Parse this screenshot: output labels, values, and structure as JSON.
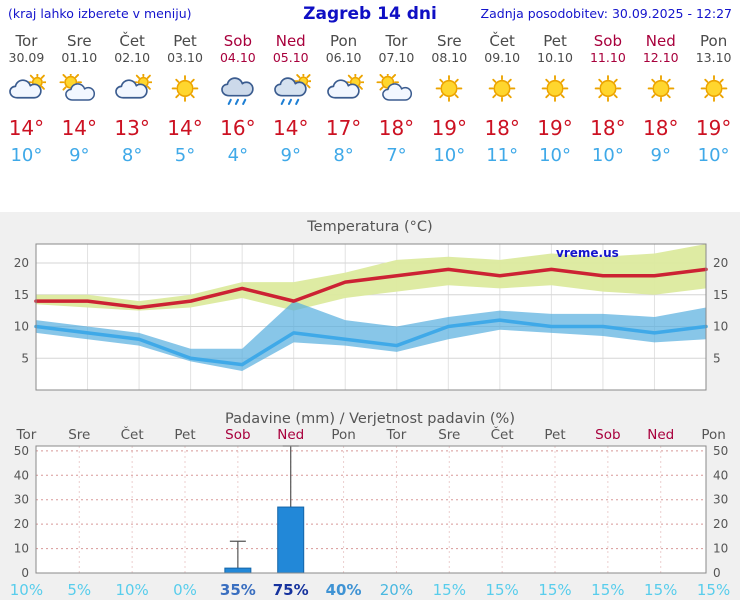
{
  "header": {
    "left_note": "(kraj lahko izberete v meniju)",
    "title": "Zagreb 14 dni",
    "updated": "Zadnja posodobitev: 30.09.2025 - 12:27"
  },
  "watermark": "vreme.us",
  "colors": {
    "header_text": "#1414cc",
    "day_normal": "#4a4a4a",
    "day_red": "#a8003c",
    "temp_high": "#cc1122",
    "temp_low": "#3fa9e8",
    "grid_gray": "#d6d6d6",
    "grid_red": "#d89898",
    "frame": "#8a8a8a"
  },
  "days": [
    {
      "name": "Tor",
      "date": "30.09",
      "red": false,
      "icon": "mostly-cloudy",
      "high": "14°",
      "low": "10°"
    },
    {
      "name": "Sre",
      "date": "01.10",
      "red": false,
      "icon": "partly-sunny",
      "high": "14°",
      "low": "9°"
    },
    {
      "name": "Čet",
      "date": "02.10",
      "red": false,
      "icon": "mostly-cloudy",
      "high": "13°",
      "low": "8°"
    },
    {
      "name": "Pet",
      "date": "03.10",
      "red": false,
      "icon": "sunny",
      "high": "14°",
      "low": "5°"
    },
    {
      "name": "Sob",
      "date": "04.10",
      "red": true,
      "icon": "rain",
      "high": "16°",
      "low": "4°"
    },
    {
      "name": "Ned",
      "date": "05.10",
      "red": true,
      "icon": "rain-sun",
      "high": "14°",
      "low": "9°"
    },
    {
      "name": "Pon",
      "date": "06.10",
      "red": false,
      "icon": "mostly-cloudy",
      "high": "17°",
      "low": "8°"
    },
    {
      "name": "Tor",
      "date": "07.10",
      "red": false,
      "icon": "partly-sunny",
      "high": "18°",
      "low": "7°"
    },
    {
      "name": "Sre",
      "date": "08.10",
      "red": false,
      "icon": "sunny",
      "high": "19°",
      "low": "10°"
    },
    {
      "name": "Čet",
      "date": "09.10",
      "red": false,
      "icon": "sunny",
      "high": "18°",
      "low": "11°"
    },
    {
      "name": "Pet",
      "date": "10.10",
      "red": false,
      "icon": "sunny",
      "high": "19°",
      "low": "10°"
    },
    {
      "name": "Sob",
      "date": "11.10",
      "red": true,
      "icon": "sunny",
      "high": "18°",
      "low": "10°"
    },
    {
      "name": "Ned",
      "date": "12.10",
      "red": true,
      "icon": "sunny",
      "high": "18°",
      "low": "9°"
    },
    {
      "name": "Pon",
      "date": "13.10",
      "red": false,
      "icon": "sunny",
      "high": "19°",
      "low": "10°"
    }
  ],
  "chart_data": [
    {
      "type": "line",
      "title": "Temperatura (°C)",
      "x_categories": [
        "Tor 30.09",
        "Sre 01.10",
        "Čet 02.10",
        "Pet 03.10",
        "Sob 04.10",
        "Ned 05.10",
        "Pon 06.10",
        "Tor 07.10",
        "Sre 08.10",
        "Čet 09.10",
        "Pet 10.10",
        "Sob 11.10",
        "Ned 12.10",
        "Pon 13.10"
      ],
      "ylim": [
        0,
        23
      ],
      "yticks": [
        5,
        10,
        15,
        20
      ],
      "grid": true,
      "legend": "none",
      "watermark": "vreme.us",
      "series": [
        {
          "name": "max temperature",
          "color": "#cc2233",
          "values": [
            14,
            14,
            13,
            14,
            16,
            14,
            17,
            18,
            19,
            18,
            19,
            18,
            18,
            19
          ]
        },
        {
          "name": "min temperature",
          "color": "#3fa9e8",
          "values": [
            10,
            9,
            8,
            5,
            4,
            9,
            8,
            7,
            10,
            11,
            10,
            10,
            9,
            10
          ]
        },
        {
          "name": "max range upper",
          "color": "#dcea9e",
          "values": [
            15,
            15,
            14,
            15,
            17,
            17,
            18.5,
            20.5,
            21,
            20.5,
            21.5,
            21,
            21.5,
            23
          ]
        },
        {
          "name": "max range lower",
          "color": "#dcea9e",
          "values": [
            13.5,
            13,
            12.5,
            13,
            14.5,
            12.5,
            14.5,
            15.5,
            16.5,
            16,
            16.5,
            15.5,
            15,
            16
          ]
        },
        {
          "name": "min range upper",
          "color": "#55aede",
          "values": [
            11,
            10,
            9,
            6.5,
            6.5,
            14,
            11,
            10,
            11.5,
            12.5,
            12,
            12,
            11.5,
            13
          ]
        },
        {
          "name": "min range lower",
          "color": "#55aede",
          "values": [
            9,
            8,
            7,
            4.5,
            3,
            7.5,
            7,
            6,
            8,
            9.5,
            9,
            8.5,
            7.5,
            8
          ]
        }
      ]
    },
    {
      "type": "bar",
      "title": "Padavine (mm) / Verjetnost padavin (%)",
      "x_categories": [
        "Tor",
        "Sre",
        "Čet",
        "Pet",
        "Sob",
        "Ned",
        "Pon",
        "Tor",
        "Sre",
        "Čet",
        "Pet",
        "Sob",
        "Ned",
        "Pon"
      ],
      "red_day_indices": [
        4,
        5,
        11,
        12
      ],
      "ylim": [
        0,
        52
      ],
      "yticks": [
        0,
        10,
        20,
        30,
        40,
        50
      ],
      "bar_color": "#2288d8",
      "precip_mm": [
        0,
        0,
        0,
        0,
        2,
        27,
        0,
        0,
        0,
        0,
        0,
        0,
        0,
        0
      ],
      "precip_max_mm": [
        0,
        0,
        0,
        0,
        13,
        52,
        0,
        0,
        0,
        0,
        0,
        0,
        0,
        0
      ],
      "probabilities": [
        {
          "label": "10%",
          "color": "#58cdec",
          "bold": false
        },
        {
          "label": "5%",
          "color": "#58cdec",
          "bold": false
        },
        {
          "label": "10%",
          "color": "#58cdec",
          "bold": false
        },
        {
          "label": "0%",
          "color": "#58cdec",
          "bold": false
        },
        {
          "label": "35%",
          "color": "#3a6fc0",
          "bold": true
        },
        {
          "label": "75%",
          "color": "#16339e",
          "bold": true
        },
        {
          "label": "40%",
          "color": "#3f93d4",
          "bold": true
        },
        {
          "label": "20%",
          "color": "#49b8e0",
          "bold": false
        },
        {
          "label": "15%",
          "color": "#58cdec",
          "bold": false
        },
        {
          "label": "15%",
          "color": "#58cdec",
          "bold": false
        },
        {
          "label": "15%",
          "color": "#58cdec",
          "bold": false
        },
        {
          "label": "15%",
          "color": "#58cdec",
          "bold": false
        },
        {
          "label": "15%",
          "color": "#58cdec",
          "bold": false
        },
        {
          "label": "15%",
          "color": "#58cdec",
          "bold": false
        }
      ]
    }
  ]
}
